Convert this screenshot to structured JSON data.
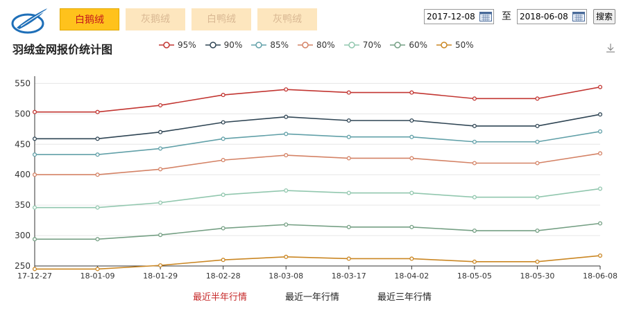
{
  "tabs": [
    {
      "label": "白鹅绒",
      "active": true
    },
    {
      "label": "灰鹅绒",
      "active": false
    },
    {
      "label": "白鸭绒",
      "active": false
    },
    {
      "label": "灰鸭绒",
      "active": false
    }
  ],
  "date_range": {
    "start": "2017-12-08",
    "separator": "至",
    "end": "2018-06-08",
    "search_label": "搜索"
  },
  "header": {
    "title": "羽绒金网报价统计图"
  },
  "icons": {
    "logo": "feather-logo-icon",
    "calendar": "calendar-icon",
    "download": "download-icon"
  },
  "footer_links": [
    {
      "label": "最近半年行情",
      "color": "#c62828"
    },
    {
      "label": "最近一年行情",
      "color": "#222222"
    },
    {
      "label": "最近三年行情",
      "color": "#222222"
    }
  ],
  "chart_data": {
    "type": "line",
    "title": "",
    "xlabel": "",
    "ylabel": "",
    "x": [
      "17-12-27",
      "18-01-09",
      "18-01-29",
      "18-02-28",
      "18-03-08",
      "18-03-17",
      "18-04-02",
      "18-05-05",
      "18-05-30",
      "18-06-08"
    ],
    "x_tick_labels": [
      "17-12-27",
      "18-01-09",
      "18-01-29",
      "18-02-28",
      "18-03-08",
      "18-03-17",
      "18-04-02",
      "18-05-05",
      "18-05-30",
      "18-06-08"
    ],
    "y_ticks": [
      250,
      300,
      350,
      400,
      450,
      500,
      550
    ],
    "ylim": [
      250,
      555
    ],
    "grid": true,
    "legend_position": "top",
    "series": [
      {
        "name": "95%",
        "color": "#c23531",
        "values": [
          503,
          503,
          514,
          531,
          540,
          535,
          535,
          525,
          525,
          544
        ]
      },
      {
        "name": "90%",
        "color": "#2f4554",
        "values": [
          459,
          459,
          470,
          486,
          495,
          489,
          489,
          480,
          480,
          499
        ]
      },
      {
        "name": "85%",
        "color": "#61a0a8",
        "values": [
          433,
          433,
          443,
          459,
          467,
          462,
          462,
          454,
          454,
          471
        ]
      },
      {
        "name": "80%",
        "color": "#d48265",
        "values": [
          400,
          400,
          409,
          424,
          432,
          427,
          427,
          419,
          419,
          435
        ]
      },
      {
        "name": "70%",
        "color": "#91c7ae",
        "values": [
          346,
          346,
          354,
          367,
          374,
          370,
          370,
          363,
          363,
          377
        ]
      },
      {
        "name": "60%",
        "color": "#749f83",
        "values": [
          294,
          294,
          301,
          312,
          318,
          314,
          314,
          308,
          308,
          320
        ]
      },
      {
        "name": "50%",
        "color": "#ca8622",
        "values": [
          245,
          245,
          251,
          260,
          265,
          262,
          262,
          257,
          257,
          267
        ]
      }
    ]
  }
}
